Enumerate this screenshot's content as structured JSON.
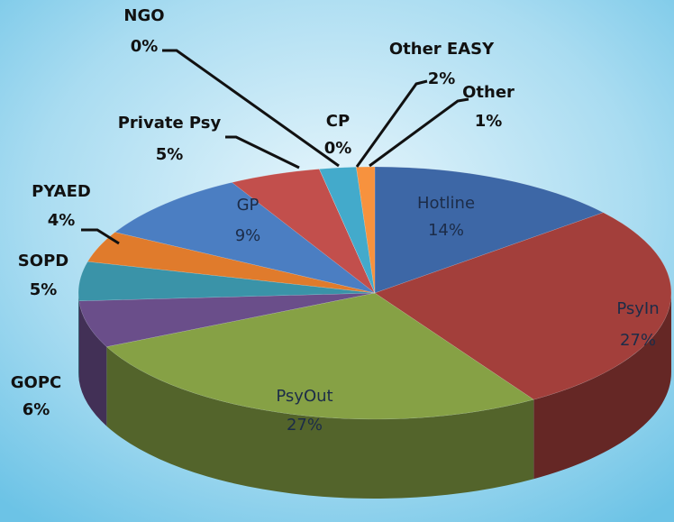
{
  "chart_data": {
    "type": "pie3d",
    "categories": [
      "Hotline",
      "PsyIn",
      "PsyOut",
      "GOPC",
      "SOPD",
      "PYAED",
      "GP",
      "Private Psy",
      "NGO",
      "CP",
      "Other EASY",
      "Other"
    ],
    "values": [
      14,
      27,
      27,
      6,
      5,
      4,
      9,
      5,
      0,
      0,
      2,
      1
    ],
    "value_labels": [
      "14%",
      "27%",
      "27%",
      "6%",
      "5%",
      "4%",
      "9%",
      "5%",
      "0%",
      "0%",
      "2%",
      "1%"
    ],
    "colors": [
      "#3d67a6",
      "#a33f3b",
      "#86a145",
      "#6a4e8a",
      "#3a93a8",
      "#e07b2c",
      "#4b7ec2",
      "#c24f4c",
      "#8fae55",
      "#4bacc6",
      "#43aacb",
      "#f7923e"
    ]
  }
}
